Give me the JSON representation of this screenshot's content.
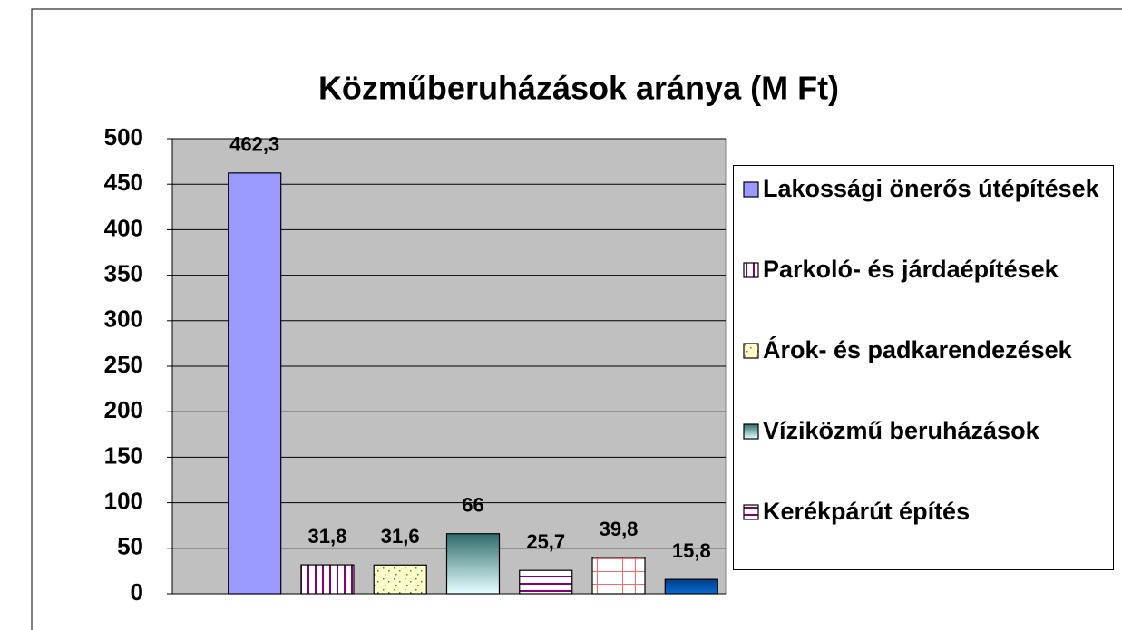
{
  "chart_data": {
    "type": "bar",
    "title": "Közműberuházások aránya  (M Ft)",
    "categories": [
      null
    ],
    "ylim": [
      0,
      500
    ],
    "yticks": [
      0,
      50,
      100,
      150,
      200,
      250,
      300,
      350,
      400,
      450,
      500
    ],
    "grid": true,
    "legend": "right",
    "series": [
      {
        "name": "Lakossági önerős útépítések",
        "color": "#9999ff",
        "pattern": "solid",
        "values": [
          462.3
        ],
        "value_labels": [
          "462,3"
        ]
      },
      {
        "name": "Parkoló- és járdaépítések",
        "color": "#800080",
        "pattern": "vertical",
        "values": [
          31.8
        ],
        "value_labels": [
          "31,8"
        ]
      },
      {
        "name": "Árok- és padkarendezések",
        "color": "#339933",
        "pattern": "dots",
        "background": "#ffffcc",
        "values": [
          31.6
        ],
        "value_labels": [
          "31,6"
        ]
      },
      {
        "name": "Víziközmű beruházások",
        "color": "#2f6b6b",
        "pattern": "gradient",
        "background": "#e6ffff",
        "values": [
          66
        ]
      },
      {
        "name": "Kerékpárút építés",
        "color": "#800080",
        "pattern": "horizontal",
        "values": [
          25.7
        ],
        "value_labels": [
          "25,7"
        ]
      },
      {
        "color": "#ff6666",
        "pattern": "grid",
        "values": [
          39.8
        ],
        "value_labels": [
          "39,8"
        ]
      },
      {
        "color": "#003f8a",
        "pattern": "gradient",
        "background": "#0a6ad0",
        "values": [
          15.8
        ],
        "value_labels": [
          "15,8"
        ]
      }
    ]
  }
}
